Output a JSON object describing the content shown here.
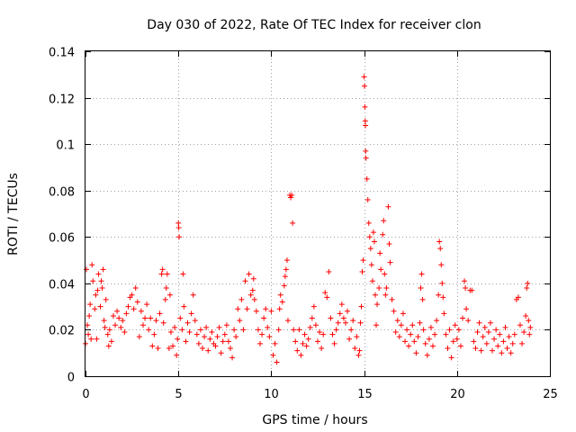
{
  "chart_data": {
    "type": "scatter",
    "title": "Day 030 of 2022, Rate Of TEC Index for receiver clon",
    "xlabel": "GPS time / hours",
    "ylabel": "ROTI / TECUs",
    "xlim": [
      0,
      25
    ],
    "ylim": [
      0,
      0.14
    ],
    "xticks": [
      0,
      5,
      10,
      15,
      20,
      25
    ],
    "xtick_labels": [
      "0",
      "5",
      "10",
      "15",
      "20",
      "25"
    ],
    "yticks": [
      0,
      0.02,
      0.04,
      0.06,
      0.08,
      0.1,
      0.12,
      0.14
    ],
    "ytick_labels": [
      "0",
      "0.02",
      "0.04",
      "0.06",
      "0.08",
      "0.1",
      "0.12",
      "0.14"
    ],
    "grid": true,
    "marker": "+",
    "color": "#ff0000",
    "series": [
      {
        "name": "ROTI",
        "points": [
          [
            0.0,
            0.014
          ],
          [
            0.05,
            0.046
          ],
          [
            0.1,
            0.022
          ],
          [
            0.15,
            0.018
          ],
          [
            0.2,
            0.026
          ],
          [
            0.25,
            0.031
          ],
          [
            0.3,
            0.016
          ],
          [
            0.35,
            0.048
          ],
          [
            0.4,
            0.041
          ],
          [
            0.5,
            0.029
          ],
          [
            0.55,
            0.035
          ],
          [
            0.6,
            0.016
          ],
          [
            0.65,
            0.037
          ],
          [
            0.7,
            0.044
          ],
          [
            0.8,
            0.03
          ],
          [
            0.85,
            0.041
          ],
          [
            0.9,
            0.038
          ],
          [
            0.95,
            0.046
          ],
          [
            1.0,
            0.024
          ],
          [
            1.05,
            0.021
          ],
          [
            1.1,
            0.033
          ],
          [
            1.2,
            0.018
          ],
          [
            1.25,
            0.013
          ],
          [
            1.3,
            0.02
          ],
          [
            1.4,
            0.015
          ],
          [
            1.5,
            0.026
          ],
          [
            1.6,
            0.022
          ],
          [
            1.7,
            0.028
          ],
          [
            1.8,
            0.025
          ],
          [
            1.9,
            0.021
          ],
          [
            2.0,
            0.024
          ],
          [
            2.1,
            0.019
          ],
          [
            2.2,
            0.027
          ],
          [
            2.3,
            0.03
          ],
          [
            2.4,
            0.034
          ],
          [
            2.5,
            0.035
          ],
          [
            2.6,
            0.029
          ],
          [
            2.7,
            0.038
          ],
          [
            2.8,
            0.032
          ],
          [
            2.9,
            0.017
          ],
          [
            3.0,
            0.028
          ],
          [
            3.1,
            0.022
          ],
          [
            3.2,
            0.025
          ],
          [
            3.3,
            0.031
          ],
          [
            3.4,
            0.02
          ],
          [
            3.5,
            0.025
          ],
          [
            3.6,
            0.013
          ],
          [
            3.7,
            0.018
          ],
          [
            3.8,
            0.024
          ],
          [
            3.9,
            0.012
          ],
          [
            4.0,
            0.027
          ],
          [
            4.1,
            0.044
          ],
          [
            4.15,
            0.046
          ],
          [
            4.2,
            0.023
          ],
          [
            4.3,
            0.033
          ],
          [
            4.35,
            0.038
          ],
          [
            4.4,
            0.044
          ],
          [
            4.5,
            0.012
          ],
          [
            4.55,
            0.035
          ],
          [
            4.6,
            0.019
          ],
          [
            4.7,
            0.013
          ],
          [
            4.8,
            0.021
          ],
          [
            4.9,
            0.009
          ],
          [
            4.95,
            0.016
          ],
          [
            5.0,
            0.066
          ],
          [
            5.02,
            0.064
          ],
          [
            5.04,
            0.06
          ],
          [
            5.1,
            0.025
          ],
          [
            5.2,
            0.02
          ],
          [
            5.25,
            0.044
          ],
          [
            5.3,
            0.03
          ],
          [
            5.4,
            0.015
          ],
          [
            5.5,
            0.023
          ],
          [
            5.6,
            0.019
          ],
          [
            5.7,
            0.027
          ],
          [
            5.8,
            0.035
          ],
          [
            5.9,
            0.024
          ],
          [
            6.0,
            0.018
          ],
          [
            6.1,
            0.014
          ],
          [
            6.2,
            0.02
          ],
          [
            6.3,
            0.012
          ],
          [
            6.4,
            0.017
          ],
          [
            6.5,
            0.021
          ],
          [
            6.6,
            0.011
          ],
          [
            6.7,
            0.016
          ],
          [
            6.8,
            0.019
          ],
          [
            6.9,
            0.014
          ],
          [
            7.0,
            0.013
          ],
          [
            7.1,
            0.017
          ],
          [
            7.2,
            0.021
          ],
          [
            7.3,
            0.01
          ],
          [
            7.4,
            0.015
          ],
          [
            7.5,
            0.018
          ],
          [
            7.6,
            0.022
          ],
          [
            7.7,
            0.015
          ],
          [
            7.8,
            0.012
          ],
          [
            7.9,
            0.008
          ],
          [
            8.0,
            0.02
          ],
          [
            8.1,
            0.017
          ],
          [
            8.2,
            0.029
          ],
          [
            8.3,
            0.024
          ],
          [
            8.4,
            0.033
          ],
          [
            8.5,
            0.02
          ],
          [
            8.6,
            0.041
          ],
          [
            8.7,
            0.029
          ],
          [
            8.8,
            0.044
          ],
          [
            8.9,
            0.035
          ],
          [
            9.0,
            0.037
          ],
          [
            9.05,
            0.042
          ],
          [
            9.1,
            0.033
          ],
          [
            9.2,
            0.028
          ],
          [
            9.3,
            0.02
          ],
          [
            9.4,
            0.014
          ],
          [
            9.5,
            0.018
          ],
          [
            9.6,
            0.025
          ],
          [
            9.7,
            0.029
          ],
          [
            9.8,
            0.021
          ],
          [
            9.9,
            0.017
          ],
          [
            10.0,
            0.028
          ],
          [
            10.1,
            0.009
          ],
          [
            10.2,
            0.014
          ],
          [
            10.3,
            0.006
          ],
          [
            10.4,
            0.02
          ],
          [
            10.45,
            0.029
          ],
          [
            10.5,
            0.035
          ],
          [
            10.6,
            0.032
          ],
          [
            10.7,
            0.039
          ],
          [
            10.75,
            0.043
          ],
          [
            10.8,
            0.046
          ],
          [
            10.85,
            0.05
          ],
          [
            10.9,
            0.024
          ],
          [
            11.0,
            0.078
          ],
          [
            11.05,
            0.077
          ],
          [
            11.1,
            0.078
          ],
          [
            11.15,
            0.066
          ],
          [
            11.2,
            0.02
          ],
          [
            11.3,
            0.015
          ],
          [
            11.4,
            0.011
          ],
          [
            11.5,
            0.02
          ],
          [
            11.6,
            0.009
          ],
          [
            11.7,
            0.014
          ],
          [
            11.8,
            0.018
          ],
          [
            11.9,
            0.013
          ],
          [
            12.0,
            0.016
          ],
          [
            12.1,
            0.021
          ],
          [
            12.2,
            0.025
          ],
          [
            12.3,
            0.03
          ],
          [
            12.4,
            0.022
          ],
          [
            12.5,
            0.015
          ],
          [
            12.6,
            0.019
          ],
          [
            12.7,
            0.012
          ],
          [
            12.8,
            0.018
          ],
          [
            12.9,
            0.036
          ],
          [
            13.0,
            0.034
          ],
          [
            13.1,
            0.045
          ],
          [
            13.2,
            0.025
          ],
          [
            13.3,
            0.018
          ],
          [
            13.4,
            0.014
          ],
          [
            13.5,
            0.02
          ],
          [
            13.6,
            0.023
          ],
          [
            13.7,
            0.027
          ],
          [
            13.8,
            0.031
          ],
          [
            13.9,
            0.025
          ],
          [
            14.0,
            0.023
          ],
          [
            14.1,
            0.028
          ],
          [
            14.2,
            0.016
          ],
          [
            14.3,
            0.02
          ],
          [
            14.4,
            0.024
          ],
          [
            14.5,
            0.012
          ],
          [
            14.6,
            0.017
          ],
          [
            14.7,
            0.009
          ],
          [
            14.75,
            0.011
          ],
          [
            14.8,
            0.023
          ],
          [
            14.85,
            0.03
          ],
          [
            14.9,
            0.045
          ],
          [
            14.95,
            0.05
          ],
          [
            15.0,
            0.129
          ],
          [
            15.02,
            0.125
          ],
          [
            15.04,
            0.116
          ],
          [
            15.06,
            0.11
          ],
          [
            15.07,
            0.108
          ],
          [
            15.08,
            0.097
          ],
          [
            15.1,
            0.094
          ],
          [
            15.15,
            0.085
          ],
          [
            15.2,
            0.076
          ],
          [
            15.25,
            0.066
          ],
          [
            15.3,
            0.06
          ],
          [
            15.35,
            0.055
          ],
          [
            15.4,
            0.048
          ],
          [
            15.45,
            0.041
          ],
          [
            15.5,
            0.062
          ],
          [
            15.55,
            0.058
          ],
          [
            15.6,
            0.035
          ],
          [
            15.65,
            0.022
          ],
          [
            15.7,
            0.031
          ],
          [
            15.8,
            0.038
          ],
          [
            15.85,
            0.053
          ],
          [
            15.9,
            0.046
          ],
          [
            16.0,
            0.061
          ],
          [
            16.05,
            0.067
          ],
          [
            16.1,
            0.044
          ],
          [
            16.15,
            0.035
          ],
          [
            16.2,
            0.038
          ],
          [
            16.3,
            0.073
          ],
          [
            16.35,
            0.057
          ],
          [
            16.4,
            0.049
          ],
          [
            16.5,
            0.033
          ],
          [
            16.6,
            0.028
          ],
          [
            16.7,
            0.019
          ],
          [
            16.8,
            0.024
          ],
          [
            16.9,
            0.017
          ],
          [
            17.0,
            0.022
          ],
          [
            17.1,
            0.027
          ],
          [
            17.2,
            0.015
          ],
          [
            17.3,
            0.02
          ],
          [
            17.4,
            0.013
          ],
          [
            17.5,
            0.018
          ],
          [
            17.6,
            0.022
          ],
          [
            17.7,
            0.015
          ],
          [
            17.8,
            0.01
          ],
          [
            17.9,
            0.017
          ],
          [
            18.0,
            0.023
          ],
          [
            18.05,
            0.038
          ],
          [
            18.1,
            0.044
          ],
          [
            18.15,
            0.033
          ],
          [
            18.2,
            0.02
          ],
          [
            18.3,
            0.014
          ],
          [
            18.4,
            0.009
          ],
          [
            18.5,
            0.016
          ],
          [
            18.6,
            0.021
          ],
          [
            18.7,
            0.013
          ],
          [
            18.8,
            0.018
          ],
          [
            18.9,
            0.024
          ],
          [
            19.0,
            0.035
          ],
          [
            19.05,
            0.058
          ],
          [
            19.1,
            0.055
          ],
          [
            19.15,
            0.048
          ],
          [
            19.2,
            0.04
          ],
          [
            19.25,
            0.034
          ],
          [
            19.3,
            0.027
          ],
          [
            19.4,
            0.018
          ],
          [
            19.5,
            0.012
          ],
          [
            19.6,
            0.02
          ],
          [
            19.7,
            0.008
          ],
          [
            19.8,
            0.015
          ],
          [
            19.9,
            0.022
          ],
          [
            20.0,
            0.016
          ],
          [
            20.1,
            0.02
          ],
          [
            20.2,
            0.013
          ],
          [
            20.3,
            0.025
          ],
          [
            20.4,
            0.041
          ],
          [
            20.45,
            0.038
          ],
          [
            20.5,
            0.029
          ],
          [
            20.6,
            0.024
          ],
          [
            20.7,
            0.037
          ],
          [
            20.8,
            0.037
          ],
          [
            20.9,
            0.015
          ],
          [
            21.0,
            0.012
          ],
          [
            21.1,
            0.019
          ],
          [
            21.2,
            0.023
          ],
          [
            21.3,
            0.011
          ],
          [
            21.4,
            0.017
          ],
          [
            21.5,
            0.021
          ],
          [
            21.6,
            0.014
          ],
          [
            21.7,
            0.019
          ],
          [
            21.8,
            0.023
          ],
          [
            21.9,
            0.011
          ],
          [
            22.0,
            0.016
          ],
          [
            22.1,
            0.02
          ],
          [
            22.2,
            0.013
          ],
          [
            22.3,
            0.018
          ],
          [
            22.4,
            0.01
          ],
          [
            22.5,
            0.015
          ],
          [
            22.6,
            0.021
          ],
          [
            22.7,
            0.012
          ],
          [
            22.8,
            0.017
          ],
          [
            22.9,
            0.01
          ],
          [
            23.0,
            0.014
          ],
          [
            23.1,
            0.018
          ],
          [
            23.2,
            0.033
          ],
          [
            23.3,
            0.034
          ],
          [
            23.4,
            0.022
          ],
          [
            23.5,
            0.014
          ],
          [
            23.6,
            0.019
          ],
          [
            23.7,
            0.026
          ],
          [
            23.75,
            0.038
          ],
          [
            23.8,
            0.04
          ],
          [
            23.85,
            0.024
          ],
          [
            23.9,
            0.018
          ],
          [
            23.95,
            0.021
          ]
        ]
      }
    ]
  }
}
